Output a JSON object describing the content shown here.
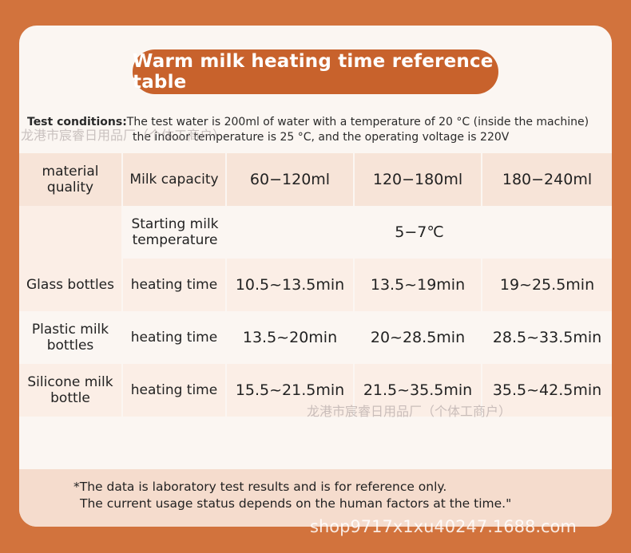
{
  "title": "Warm milk heating time reference table",
  "conditions": {
    "label": "Test conditions:",
    "line1": "The test water is 200ml of water with a temperature of 20 °C (inside the machine)",
    "line2": "the indoor temperature is 25 °C, and the operating voltage is 220V"
  },
  "table": {
    "header": {
      "material": "material quality",
      "capacity": "Milk capacity",
      "ranges": [
        "60−120ml",
        "120−180ml",
        "180−240ml"
      ]
    },
    "start_temp": {
      "label": "Starting milk temperature",
      "value": "5−7℃"
    },
    "rows": [
      {
        "material": "Glass bottles",
        "metric": "heating time",
        "values": [
          "10.5~13.5min",
          "13.5~19min",
          "19~25.5min"
        ]
      },
      {
        "material": "Plastic milk bottles",
        "metric": "heating time",
        "values": [
          "13.5~20min",
          "20~28.5min",
          "28.5~33.5min"
        ]
      },
      {
        "material": "Silicone milk bottle",
        "metric": "heating time",
        "values": [
          "15.5~21.5min",
          "21.5~35.5min",
          "35.5~42.5min"
        ]
      }
    ]
  },
  "footer": {
    "line1": "*The data is laboratory test results and is for reference only.",
    "line2": "The current usage status depends on the human factors at the time.\""
  },
  "watermarks": {
    "company": "龙港市宸睿日用品厂（个体工商户）",
    "shop": "shop9717x1xu40247.1688.com"
  }
}
